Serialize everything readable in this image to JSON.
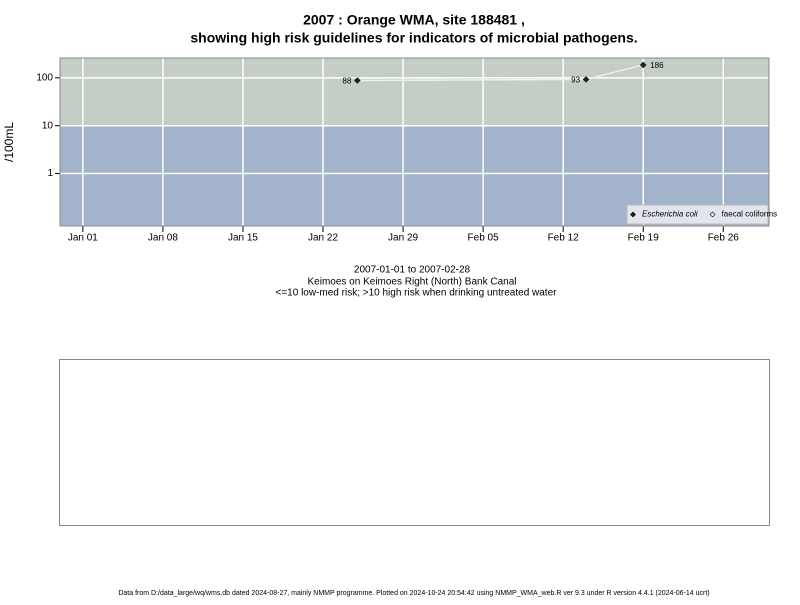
{
  "chart_data": {
    "type": "line",
    "title": "2007 : Orange WMA, site 188481 ,",
    "subtitle": "showing high risk guidelines for indicators of microbial pathogens.",
    "y_label": "/100mL",
    "annotations": [
      "2007-01-01 to 2007-02-28",
      "Keimoes on Keimoes Right (North) Bank Canal",
      "<=10 low-med risk; >10 high risk when drinking untreated water"
    ],
    "footer": "Data from D:/data_large/wq/wms.db dated 2024-08-27, mainly NMMP programme. Plotted on 2024-10-24 20:54:42 using NMMP_WMA_web.R ver 9.3 under R version 4.4.1 (2024-06-14 ucrt)",
    "log_scale": true,
    "ylim": [
      0.08,
      260
    ],
    "yticks": [
      1,
      10,
      100
    ],
    "xlim": [
      "2006-12-30",
      "2007-03-02"
    ],
    "xticks": [
      {
        "value": "2007-01-01",
        "label": "Jan 01"
      },
      {
        "value": "2007-01-08",
        "label": "Jan 08"
      },
      {
        "value": "2007-01-15",
        "label": "Jan 15"
      },
      {
        "value": "2007-01-22",
        "label": "Jan 22"
      },
      {
        "value": "2007-01-29",
        "label": "Jan 29"
      },
      {
        "value": "2007-02-05",
        "label": "Feb 05"
      },
      {
        "value": "2007-02-12",
        "label": "Feb 12"
      },
      {
        "value": "2007-02-19",
        "label": "Feb 19"
      },
      {
        "value": "2007-02-26",
        "label": "Feb 26"
      }
    ],
    "threshold": 10,
    "high_color": "#c4cec4",
    "low_color": "#a3b3cb",
    "grid": true,
    "legend": "bottom-right",
    "series": [
      {
        "name": "Escherichia coli",
        "color": "#222222",
        "x": [
          "2007-01-25",
          "2007-02-14",
          "2007-02-19"
        ],
        "values": [
          88,
          93,
          186
        ]
      },
      {
        "name": "faecal coliforms",
        "color": "#ffffff",
        "x": [],
        "values": []
      }
    ]
  }
}
